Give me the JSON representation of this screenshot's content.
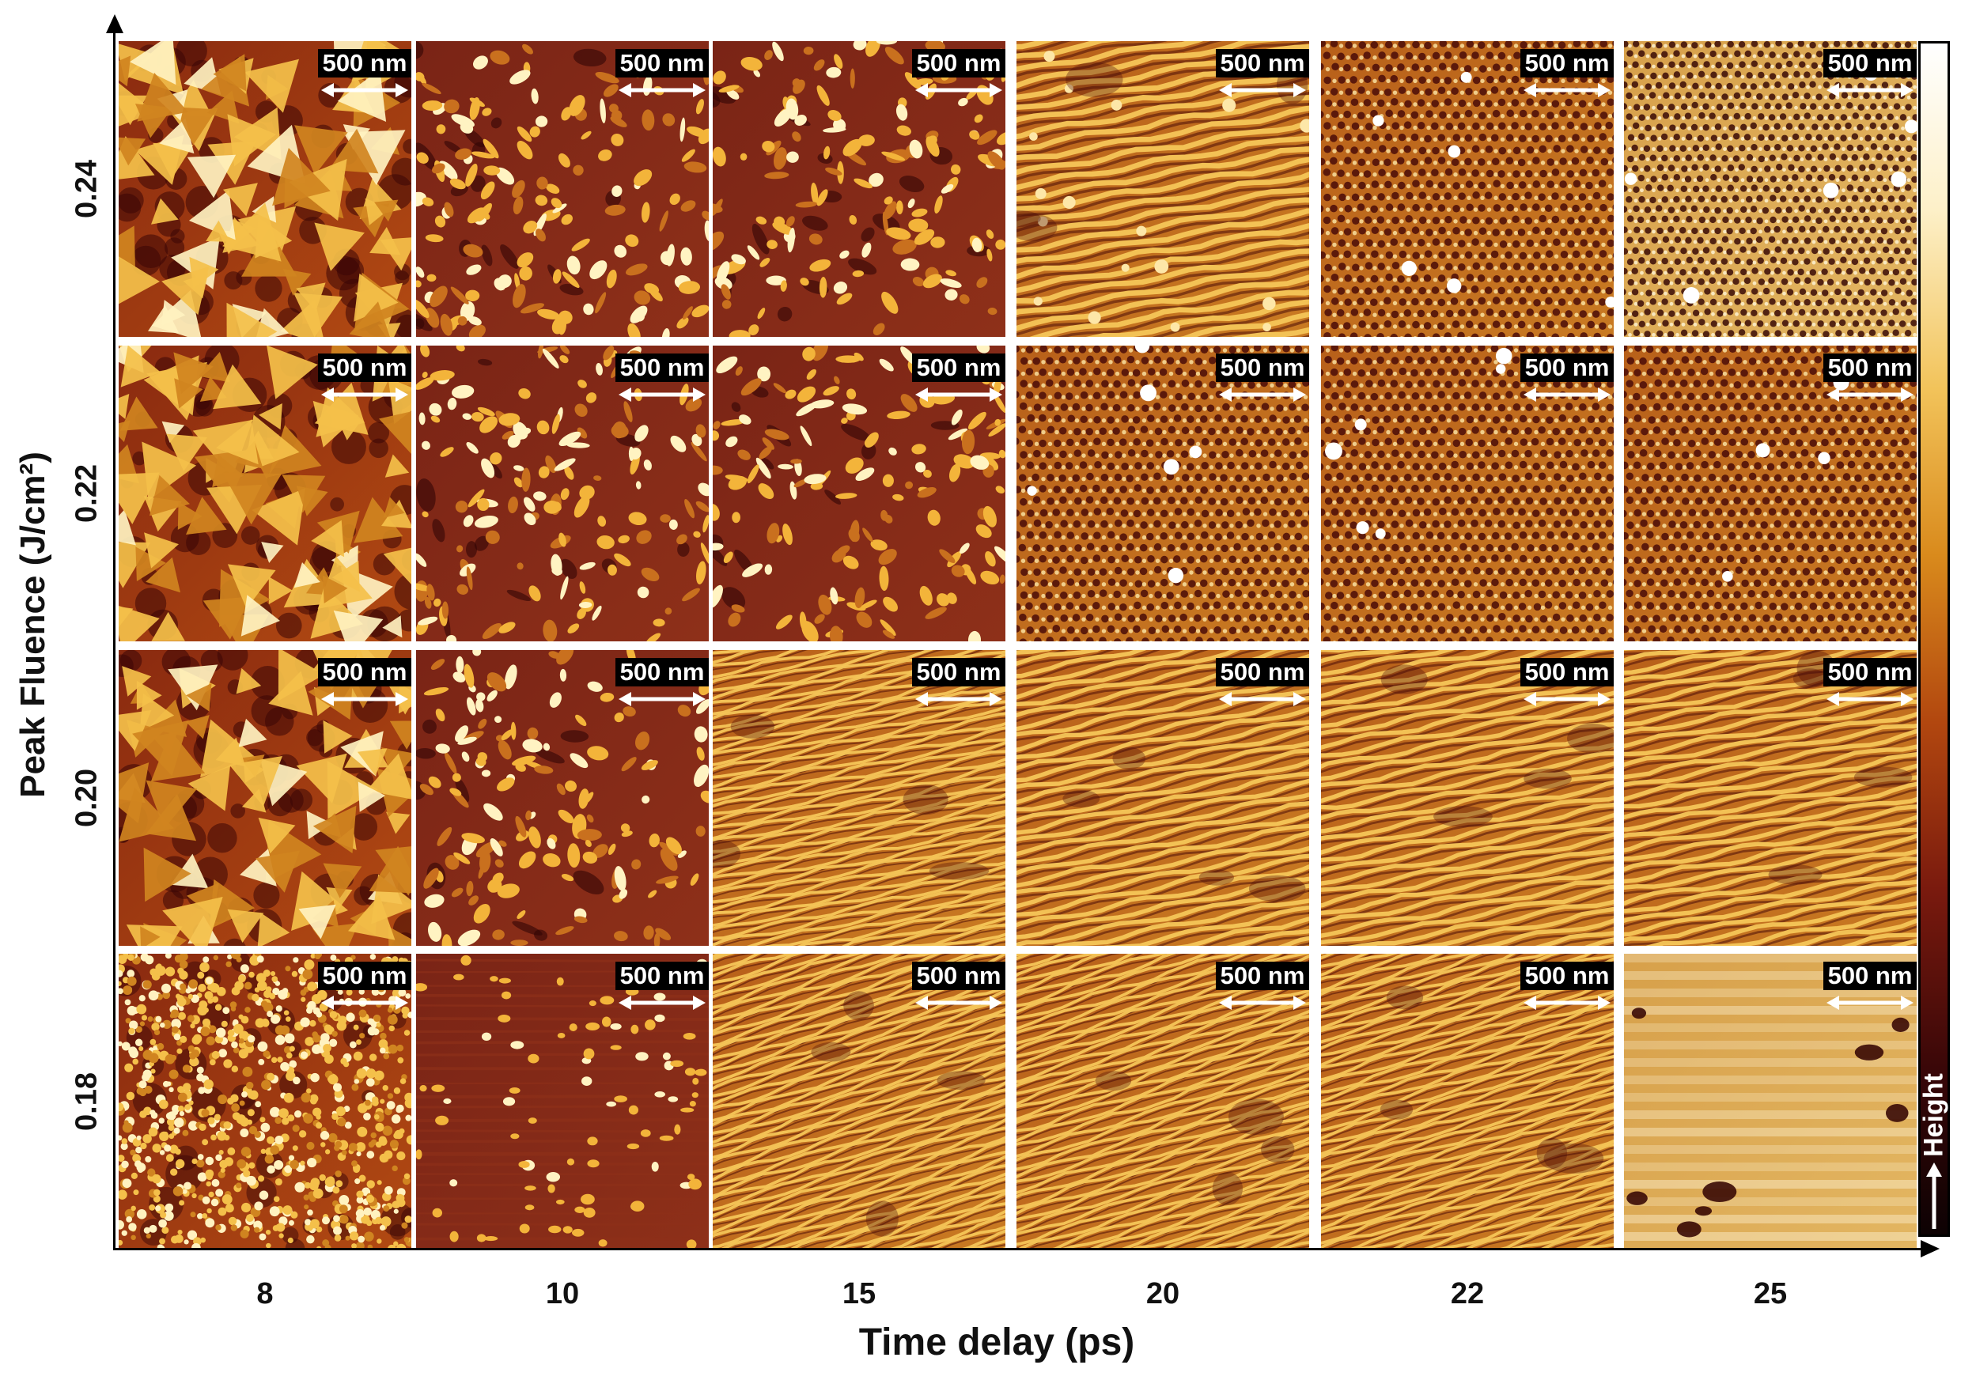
{
  "figure": {
    "x_axis_title": "Time delay (ps)",
    "y_axis_title": "Peak Fluence (J/cm²)",
    "columns": [
      "8",
      "10",
      "15",
      "20",
      "22",
      "25"
    ],
    "rows": [
      "0.24",
      "0.22",
      "0.20",
      "0.18"
    ],
    "scale_bar_label": "500 nm",
    "colorbar_label": "Height",
    "colorbar_arrow_icon": "arrow-up-icon",
    "colormap": [
      "#0d0203",
      "#3a0708",
      "#7a1a0e",
      "#b2470f",
      "#d98a1c",
      "#f2c35a",
      "#fdf0c8",
      "#ffffff"
    ]
  },
  "panels": [
    {
      "row": "0.24",
      "delay": "8",
      "pattern": "large triangular grains"
    },
    {
      "row": "0.24",
      "delay": "10",
      "pattern": "irregular bright islands"
    },
    {
      "row": "0.24",
      "delay": "15",
      "pattern": "elongated islands"
    },
    {
      "row": "0.24",
      "delay": "20",
      "pattern": "wavy ridges with particles"
    },
    {
      "row": "0.24",
      "delay": "22",
      "pattern": "stripes and dark holes"
    },
    {
      "row": "0.24",
      "delay": "25",
      "pattern": "dense hexagonal holes"
    },
    {
      "row": "0.22",
      "delay": "8",
      "pattern": "large triangular grains"
    },
    {
      "row": "0.22",
      "delay": "10",
      "pattern": "irregular bright islands"
    },
    {
      "row": "0.22",
      "delay": "15",
      "pattern": "bright droplets on ridges"
    },
    {
      "row": "0.22",
      "delay": "20",
      "pattern": "hole array with particles"
    },
    {
      "row": "0.22",
      "delay": "22",
      "pattern": "hole array"
    },
    {
      "row": "0.22",
      "delay": "25",
      "pattern": "hole array with stripes"
    },
    {
      "row": "0.20",
      "delay": "8",
      "pattern": "large triangular grains"
    },
    {
      "row": "0.20",
      "delay": "10",
      "pattern": "dendritic islands"
    },
    {
      "row": "0.20",
      "delay": "15",
      "pattern": "fine stripes"
    },
    {
      "row": "0.20",
      "delay": "20",
      "pattern": "labyrinth stripes"
    },
    {
      "row": "0.20",
      "delay": "22",
      "pattern": "labyrinth stripes"
    },
    {
      "row": "0.20",
      "delay": "25",
      "pattern": "labyrinth stripes"
    },
    {
      "row": "0.18",
      "delay": "8",
      "pattern": "fine granular nanoparticles"
    },
    {
      "row": "0.18",
      "delay": "10",
      "pattern": "sparse droplets on flat film"
    },
    {
      "row": "0.18",
      "delay": "15",
      "pattern": "fine stripes"
    },
    {
      "row": "0.18",
      "delay": "20",
      "pattern": "fine stripes and dots"
    },
    {
      "row": "0.18",
      "delay": "22",
      "pattern": "fine stripes and dots"
    },
    {
      "row": "0.18",
      "delay": "25",
      "pattern": "smooth film with dark pits"
    }
  ]
}
